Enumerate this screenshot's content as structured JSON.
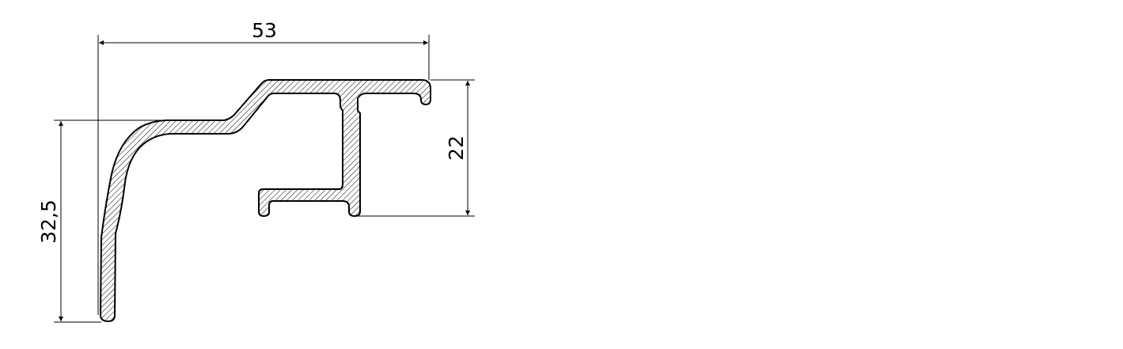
{
  "dimensions": {
    "width_top": "53",
    "height_right": "22",
    "height_left": "32,5"
  },
  "colors": {
    "line": "#000000",
    "hatch": "#000000",
    "hatch_tint": "#d9c7c0",
    "background": "#ffffff"
  }
}
